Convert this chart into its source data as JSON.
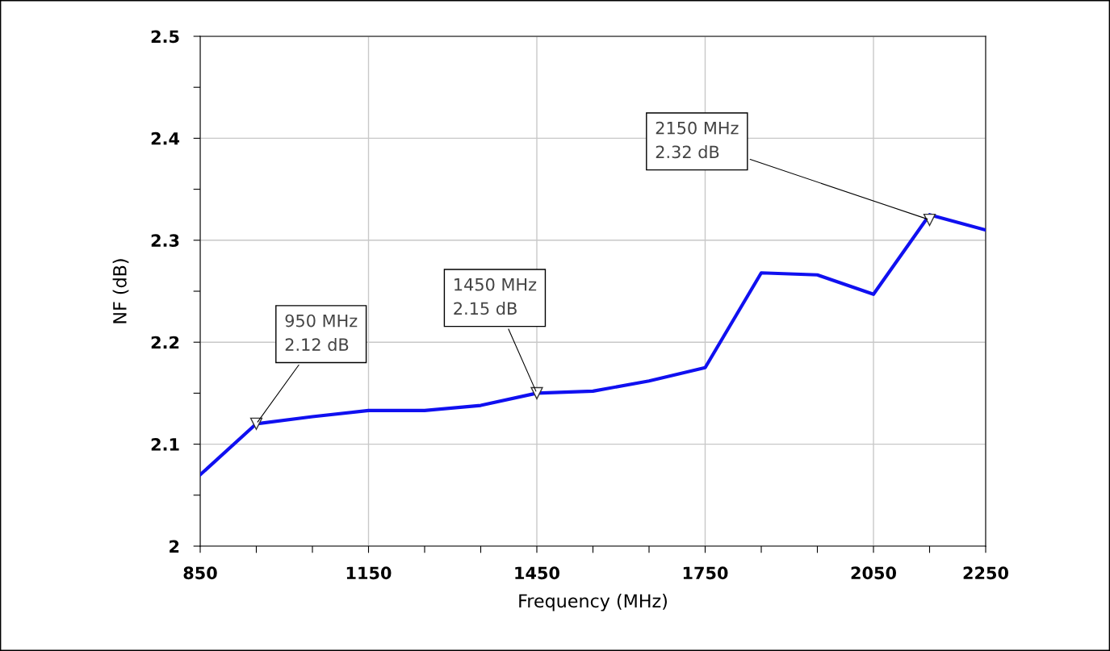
{
  "chart_data": {
    "type": "line",
    "xlabel": "Frequency (MHz)",
    "ylabel": "NF (dB)",
    "x": [
      850,
      950,
      1050,
      1150,
      1250,
      1350,
      1450,
      1550,
      1650,
      1750,
      1850,
      1950,
      2050,
      2150,
      2250
    ],
    "series": [
      {
        "color": "#1010f0",
        "values": [
          2.07,
          2.12,
          2.127,
          2.133,
          2.133,
          2.138,
          2.15,
          2.152,
          2.162,
          2.175,
          2.268,
          2.266,
          2.247,
          2.325,
          2.31
        ]
      }
    ],
    "xlim": [
      850,
      2250
    ],
    "xticks": [
      850,
      {
        "value": 950,
        "label": null
      },
      {
        "value": 1050,
        "label": null
      },
      1150,
      {
        "value": 1250,
        "label": null
      },
      {
        "value": 1350,
        "label": null
      },
      1450,
      {
        "value": 1550,
        "label": null
      },
      {
        "value": 1650,
        "label": null
      },
      1750,
      {
        "value": 1850,
        "label": null
      },
      {
        "value": 1950,
        "label": null
      },
      2050,
      {
        "value": 2150,
        "label": null
      },
      2250
    ],
    "ylim": [
      2,
      2.5
    ],
    "yticks": [
      {
        "value": 2,
        "label": "2"
      },
      {
        "value": 2.05,
        "label": null
      },
      {
        "value": 2.1,
        "label": "2.1"
      },
      {
        "value": 2.15,
        "label": null
      },
      {
        "value": 2.2,
        "label": "2.2"
      },
      {
        "value": 2.25,
        "label": null
      },
      {
        "value": 2.3,
        "label": "2.3"
      },
      {
        "value": 2.35,
        "label": null
      },
      {
        "value": 2.4,
        "label": "2.4"
      },
      {
        "value": 2.45,
        "label": null
      },
      {
        "value": 2.5,
        "label": "2.5"
      }
    ],
    "grid": true,
    "marker": "none",
    "line_style": "solid",
    "annotations": [
      {
        "text": "950 MHz\n2.12 dB",
        "x": 950,
        "y": 2.12
      },
      {
        "text": "1450 MHz\n2.15 dB",
        "x": 1450,
        "y": 2.15
      },
      {
        "text": "2150 MHz\n2.32 dB",
        "x": 2150,
        "y": 2.32
      }
    ]
  }
}
